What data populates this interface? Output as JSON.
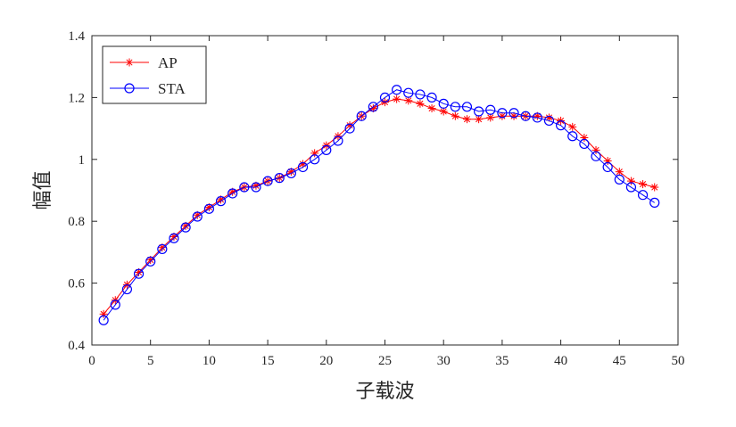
{
  "chart_data": {
    "type": "line",
    "title": "",
    "xlabel": "子载波",
    "ylabel": "幅值",
    "xlim": [
      0,
      50
    ],
    "ylim": [
      0.4,
      1.4
    ],
    "xticks": [
      "0",
      "5",
      "10",
      "15",
      "20",
      "25",
      "30",
      "35",
      "40",
      "45",
      "50"
    ],
    "yticks": [
      "0.4",
      "0.6",
      "0.8",
      "1",
      "1.2",
      "1.4"
    ],
    "grid": false,
    "legend_position": "top-left",
    "x": [
      1,
      2,
      3,
      4,
      5,
      6,
      7,
      8,
      9,
      10,
      11,
      12,
      13,
      14,
      15,
      16,
      17,
      18,
      19,
      20,
      21,
      22,
      23,
      24,
      25,
      26,
      27,
      28,
      29,
      30,
      31,
      32,
      33,
      34,
      35,
      36,
      37,
      38,
      39,
      40,
      41,
      42,
      43,
      44,
      45,
      46,
      47,
      48
    ],
    "series": [
      {
        "name": "AP",
        "color": "#ff0000",
        "marker": "asterisk",
        "values": [
          0.5,
          0.545,
          0.595,
          0.635,
          0.675,
          0.715,
          0.75,
          0.785,
          0.82,
          0.845,
          0.87,
          0.895,
          0.91,
          0.915,
          0.93,
          0.94,
          0.96,
          0.985,
          1.02,
          1.045,
          1.075,
          1.11,
          1.14,
          1.165,
          1.185,
          1.195,
          1.19,
          1.18,
          1.165,
          1.155,
          1.14,
          1.13,
          1.13,
          1.135,
          1.14,
          1.14,
          1.14,
          1.14,
          1.135,
          1.125,
          1.105,
          1.07,
          1.03,
          0.995,
          0.96,
          0.93,
          0.92,
          0.91
        ]
      },
      {
        "name": "STA",
        "color": "#0000ff",
        "marker": "circle",
        "values": [
          0.48,
          0.53,
          0.58,
          0.63,
          0.67,
          0.71,
          0.745,
          0.78,
          0.815,
          0.84,
          0.865,
          0.89,
          0.91,
          0.91,
          0.93,
          0.94,
          0.955,
          0.975,
          1.0,
          1.03,
          1.06,
          1.1,
          1.14,
          1.17,
          1.2,
          1.225,
          1.215,
          1.21,
          1.2,
          1.18,
          1.17,
          1.17,
          1.155,
          1.16,
          1.15,
          1.15,
          1.14,
          1.135,
          1.125,
          1.11,
          1.075,
          1.05,
          1.01,
          0.975,
          0.935,
          0.91,
          0.885,
          0.86
        ]
      }
    ]
  }
}
